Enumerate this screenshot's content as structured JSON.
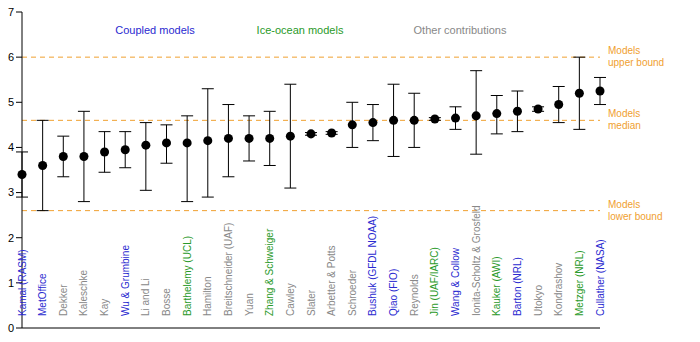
{
  "chart_data": {
    "type": "scatter",
    "categories": [
      "Kamal (RASM)",
      "MetOffice",
      "Dekker",
      "Kaleschke",
      "Kay",
      "Wu & Grumbine",
      "Li and Li",
      "Bosse",
      "Barthelemy (UCL)",
      "Hamilton",
      "Breitschneider (UAF)",
      "Yuan",
      "Zhang & Schweiger",
      "Cawley",
      "Slater",
      "Arbetter & Potts",
      "Schroeder",
      "Bushuk (GFDL NOAA)",
      "Qiao (FIO)",
      "Reynolds",
      "Jin (UAF/IARC)",
      "Wang & Collow",
      "Ionita-Scholtz & Grosfeld",
      "Kauker (AWI)",
      "Barton (NRL)",
      "Utokyo",
      "Kondrashov",
      "Metzger (NRL)",
      "Cullather (NASA)"
    ],
    "values": [
      3.4,
      3.6,
      3.8,
      3.8,
      3.9,
      3.95,
      4.05,
      4.1,
      4.1,
      4.15,
      4.2,
      4.2,
      4.2,
      4.25,
      4.3,
      4.32,
      4.5,
      4.55,
      4.6,
      4.6,
      4.63,
      4.65,
      4.7,
      4.75,
      4.8,
      4.85,
      4.95,
      5.2,
      5.25
    ],
    "errors": [
      [
        0.5,
        0.5
      ],
      [
        1.0,
        1.0
      ],
      [
        0.45,
        0.45
      ],
      [
        1.0,
        1.0
      ],
      [
        0.45,
        0.45
      ],
      [
        0.4,
        0.4
      ],
      [
        1.0,
        0.5
      ],
      [
        0.45,
        0.4
      ],
      [
        1.3,
        0.6
      ],
      [
        1.25,
        1.15
      ],
      [
        0.85,
        0.75
      ],
      [
        0.5,
        0.5
      ],
      [
        0.6,
        0.6
      ],
      [
        1.15,
        1.15
      ],
      [
        0.03,
        0.03
      ],
      [
        0.03,
        0.03
      ],
      [
        0.5,
        0.5
      ],
      [
        0.4,
        0.4
      ],
      [
        0.8,
        0.8
      ],
      [
        0.6,
        0.6
      ],
      [
        0.03,
        0.03
      ],
      [
        0.25,
        0.25
      ],
      [
        0.85,
        1.0
      ],
      [
        0.45,
        0.4
      ],
      [
        0.45,
        0.45
      ],
      [
        0.05,
        0.05
      ],
      [
        0.4,
        0.4
      ],
      [
        0.8,
        0.8
      ],
      [
        0.3,
        0.3
      ]
    ],
    "group": [
      0,
      0,
      2,
      2,
      2,
      0,
      2,
      2,
      1,
      2,
      2,
      2,
      1,
      2,
      2,
      2,
      2,
      0,
      0,
      2,
      1,
      0,
      2,
      1,
      0,
      2,
      2,
      1,
      0
    ],
    "groups": [
      {
        "name": "Coupled models",
        "color": "#2a2ad0"
      },
      {
        "name": "Ice-ocean models",
        "color": "#2a9a2a"
      },
      {
        "name": "Other contributions",
        "color": "#888888"
      }
    ],
    "color": "#000000",
    "marker": "circle",
    "reference_lines": [
      {
        "value": 6,
        "label": "Models upper bound"
      },
      {
        "value": 4.6,
        "label": "Models median"
      },
      {
        "value": 2.6,
        "label": "Models lower bound"
      }
    ],
    "reference_color": "#f0a030",
    "reference_line_style": "dashed",
    "ylim": [
      0,
      7
    ],
    "yticks": [
      0,
      1,
      2,
      3,
      4,
      5,
      6,
      7
    ],
    "grid": false
  }
}
